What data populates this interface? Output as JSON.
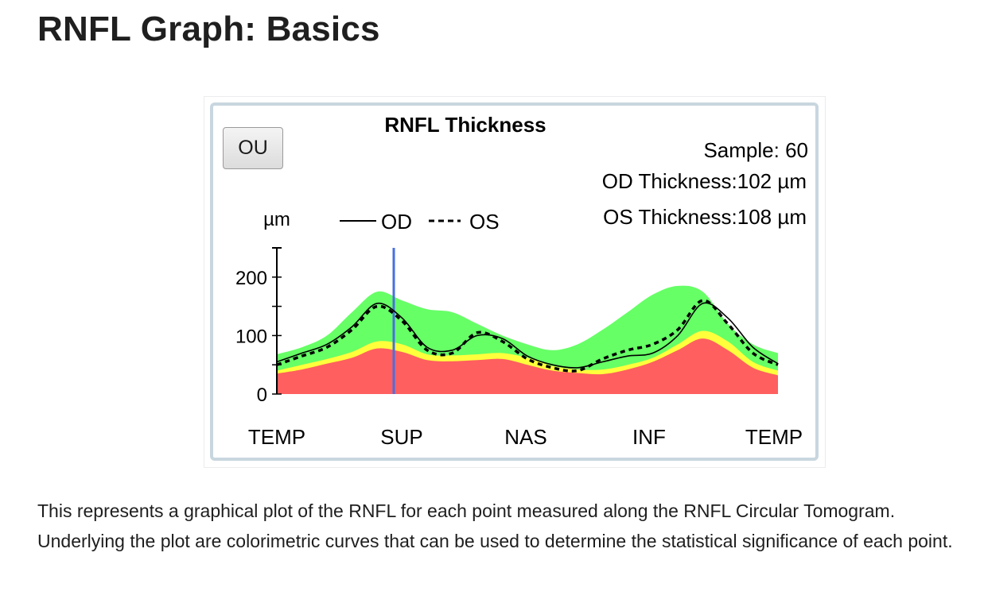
{
  "page": {
    "title": "RNFL Graph: Basics",
    "description": "This represents a graphical plot of the RNFL for each point measured along the RNFL Circular Tomogram. Underlying the plot are colorimetric curves that can be used to determine the statistical significance of each point."
  },
  "controls": {
    "ou_button_label": "OU"
  },
  "stats": {
    "sample": "Sample: 60",
    "od_thickness": "OD Thickness:102 µm",
    "os_thickness": "OS Thickness:108 µm"
  },
  "colors": {
    "red": "#ff5f5f",
    "yellow": "#ffff3c",
    "green": "#66ff66",
    "marker": "#4a6fe0",
    "line": "#000000"
  },
  "chart_data": {
    "type": "area",
    "title": "RNFL Thickness",
    "ylabel": "µm",
    "ylim": [
      0,
      250
    ],
    "yticks": [
      0,
      100,
      200
    ],
    "xlabel_ticks": [
      "TEMP",
      "SUP",
      "NAS",
      "INF",
      "TEMP"
    ],
    "legend": {
      "placement": "top",
      "entries": [
        {
          "name": "OD",
          "style": "solid"
        },
        {
          "name": "OS",
          "style": "dashed"
        }
      ]
    },
    "x": [
      0,
      3,
      6,
      9,
      12,
      15,
      18,
      21,
      24,
      27,
      30,
      33,
      36,
      39,
      42,
      45,
      48,
      51,
      54,
      57,
      60
    ],
    "bands": [
      {
        "name": "red",
        "values": [
          35,
          42,
          52,
          62,
          78,
          72,
          58,
          56,
          58,
          60,
          50,
          40,
          36,
          34,
          42,
          55,
          75,
          95,
          75,
          45,
          32
        ]
      },
      {
        "name": "yellow",
        "values": [
          40,
          50,
          60,
          72,
          90,
          85,
          68,
          66,
          68,
          70,
          62,
          48,
          42,
          42,
          50,
          62,
          85,
          108,
          90,
          55,
          40
        ]
      },
      {
        "name": "green",
        "values": [
          68,
          80,
          100,
          140,
          175,
          160,
          145,
          140,
          120,
          100,
          85,
          75,
          85,
          110,
          140,
          170,
          185,
          175,
          120,
          85,
          70
        ]
      }
    ],
    "series": [
      {
        "name": "OD",
        "values": [
          55,
          70,
          85,
          115,
          155,
          130,
          80,
          75,
          100,
          95,
          65,
          50,
          45,
          55,
          65,
          70,
          100,
          155,
          130,
          80,
          52
        ]
      },
      {
        "name": "OS",
        "values": [
          50,
          65,
          80,
          110,
          150,
          125,
          75,
          70,
          105,
          90,
          60,
          45,
          40,
          60,
          75,
          85,
          110,
          160,
          120,
          70,
          50
        ]
      }
    ],
    "marker_x": 14
  }
}
